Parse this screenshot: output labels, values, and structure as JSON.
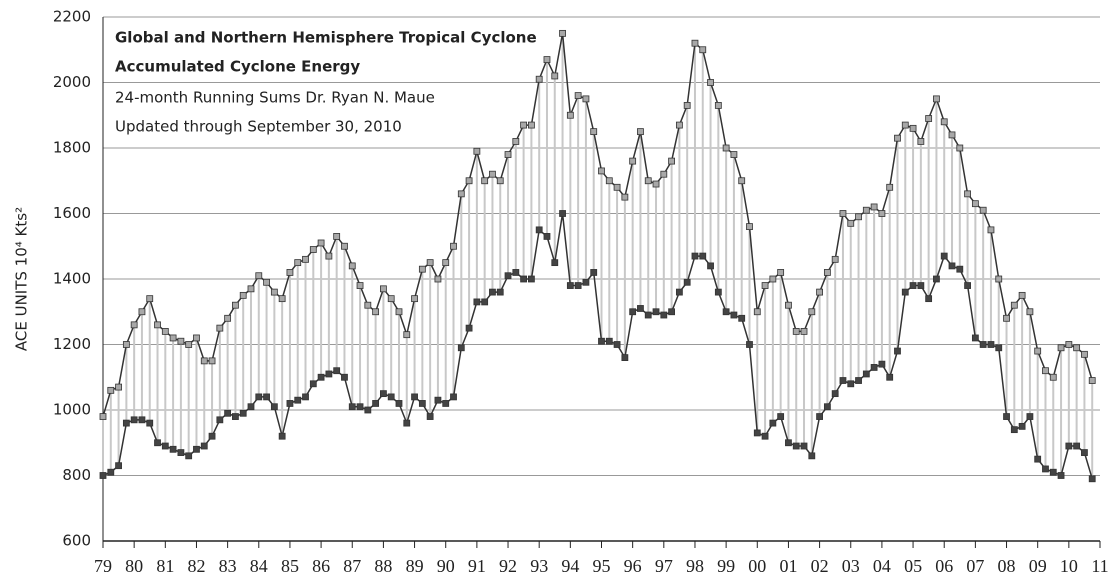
{
  "chart_data": {
    "type": "line",
    "title": [
      "Global and Northern Hemisphere Tropical Cyclone",
      "Accumulated Cyclone Energy"
    ],
    "subtitle": [
      "24-month Running Sums Dr. Ryan N. Maue",
      "Updated through September 30, 2010"
    ],
    "y_label": "ACE UNITS 10⁴ Kts²",
    "x": [
      1979,
      1979.25,
      1979.5,
      1979.75,
      1980,
      1980.25,
      1980.5,
      1980.75,
      1981,
      1981.25,
      1981.5,
      1981.75,
      1982,
      1982.25,
      1982.5,
      1982.75,
      1983,
      1983.25,
      1983.5,
      1983.75,
      1984,
      1984.25,
      1984.5,
      1984.75,
      1985,
      1985.25,
      1985.5,
      1985.75,
      1986,
      1986.25,
      1986.5,
      1986.75,
      1987,
      1987.25,
      1987.5,
      1987.75,
      1988,
      1988.25,
      1988.5,
      1988.75,
      1989,
      1989.25,
      1989.5,
      1989.75,
      1990,
      1990.25,
      1990.5,
      1990.75,
      1991,
      1991.25,
      1991.5,
      1991.75,
      1992,
      1992.25,
      1992.5,
      1992.75,
      1993,
      1993.25,
      1993.5,
      1993.75,
      1994,
      1994.25,
      1994.5,
      1994.75,
      1995,
      1995.25,
      1995.5,
      1995.75,
      1996,
      1996.25,
      1996.5,
      1996.75,
      1997,
      1997.25,
      1997.5,
      1997.75,
      1998,
      1998.25,
      1998.5,
      1998.75,
      1999,
      1999.25,
      1999.5,
      1999.75,
      2000,
      2000.25,
      2000.5,
      2000.75,
      2001,
      2001.25,
      2001.5,
      2001.75,
      2002,
      2002.25,
      2002.5,
      2002.75,
      2003,
      2003.25,
      2003.5,
      2003.75,
      2004,
      2004.25,
      2004.5,
      2004.75,
      2005,
      2005.25,
      2005.5,
      2005.75,
      2006,
      2006.25,
      2006.5,
      2006.75,
      2007,
      2007.25,
      2007.5,
      2007.75,
      2008,
      2008.25,
      2008.5,
      2008.75,
      2009,
      2009.25,
      2009.5,
      2009.75,
      2010,
      2010.25,
      2010.5,
      2010.75
    ],
    "series": [
      {
        "color": "#a8a8a8",
        "values": [
          980,
          1060,
          1070,
          1200,
          1260,
          1300,
          1340,
          1260,
          1240,
          1220,
          1210,
          1200,
          1220,
          1150,
          1150,
          1250,
          1280,
          1320,
          1350,
          1370,
          1410,
          1390,
          1360,
          1340,
          1420,
          1450,
          1460,
          1490,
          1510,
          1470,
          1530,
          1500,
          1440,
          1380,
          1320,
          1300,
          1370,
          1340,
          1300,
          1230,
          1340,
          1430,
          1450,
          1400,
          1450,
          1500,
          1660,
          1700,
          1790,
          1700,
          1720,
          1700,
          1780,
          1820,
          1870,
          1870,
          2010,
          2070,
          2020,
          2150,
          1900,
          1960,
          1950,
          1850,
          1730,
          1700,
          1680,
          1650,
          1760,
          1850,
          1700,
          1690,
          1720,
          1760,
          1870,
          1930,
          2120,
          2100,
          2000,
          1930,
          1800,
          1780,
          1700,
          1560,
          1300,
          1380,
          1400,
          1420,
          1320,
          1240,
          1240,
          1300,
          1360,
          1420,
          1460,
          1600,
          1570,
          1590,
          1610,
          1620,
          1600,
          1680,
          1830,
          1870,
          1860,
          1820,
          1890,
          1950,
          1880,
          1840,
          1800,
          1660,
          1630,
          1610,
          1550,
          1400,
          1280,
          1320,
          1350,
          1300,
          1180,
          1120,
          1100,
          1190,
          1200,
          1190,
          1170,
          1090
        ]
      },
      {
        "color": "#444444",
        "values": [
          800,
          810,
          830,
          960,
          970,
          970,
          960,
          900,
          890,
          880,
          870,
          860,
          880,
          890,
          920,
          970,
          990,
          980,
          990,
          1010,
          1040,
          1040,
          1010,
          920,
          1020,
          1030,
          1040,
          1080,
          1100,
          1110,
          1120,
          1100,
          1010,
          1010,
          1000,
          1020,
          1050,
          1040,
          1020,
          960,
          1040,
          1020,
          980,
          1030,
          1020,
          1040,
          1190,
          1250,
          1330,
          1330,
          1360,
          1360,
          1410,
          1420,
          1400,
          1400,
          1550,
          1530,
          1450,
          1600,
          1380,
          1380,
          1390,
          1420,
          1210,
          1210,
          1200,
          1160,
          1300,
          1310,
          1290,
          1300,
          1290,
          1300,
          1360,
          1390,
          1470,
          1470,
          1440,
          1360,
          1300,
          1290,
          1280,
          1200,
          930,
          920,
          960,
          980,
          900,
          890,
          890,
          860,
          980,
          1010,
          1050,
          1090,
          1080,
          1090,
          1110,
          1130,
          1140,
          1100,
          1180,
          1360,
          1380,
          1380,
          1340,
          1400,
          1470,
          1440,
          1430,
          1380,
          1220,
          1200,
          1200,
          1190,
          980,
          940,
          950,
          980,
          850,
          820,
          810,
          800,
          890,
          890,
          870,
          790
        ]
      }
    ],
    "xlim": [
      1979,
      2011
    ],
    "xticks": [
      {
        "value": 1979,
        "label": "79"
      },
      {
        "value": 1980,
        "label": "80"
      },
      {
        "value": 1981,
        "label": "81"
      },
      {
        "value": 1982,
        "label": "82"
      },
      {
        "value": 1983,
        "label": "83"
      },
      {
        "value": 1984,
        "label": "84"
      },
      {
        "value": 1985,
        "label": "85"
      },
      {
        "value": 1986,
        "label": "86"
      },
      {
        "value": 1987,
        "label": "87"
      },
      {
        "value": 1988,
        "label": "88"
      },
      {
        "value": 1989,
        "label": "89"
      },
      {
        "value": 1990,
        "label": "90"
      },
      {
        "value": 1991,
        "label": "91"
      },
      {
        "value": 1992,
        "label": "92"
      },
      {
        "value": 1993,
        "label": "93"
      },
      {
        "value": 1994,
        "label": "94"
      },
      {
        "value": 1995,
        "label": "95"
      },
      {
        "value": 1996,
        "label": "96"
      },
      {
        "value": 1997,
        "label": "97"
      },
      {
        "value": 1998,
        "label": "98"
      },
      {
        "value": 1999,
        "label": "99"
      },
      {
        "value": 2000,
        "label": "00"
      },
      {
        "value": 2001,
        "label": "01"
      },
      {
        "value": 2002,
        "label": "02"
      },
      {
        "value": 2003,
        "label": "03"
      },
      {
        "value": 2004,
        "label": "04"
      },
      {
        "value": 2005,
        "label": "05"
      },
      {
        "value": 2006,
        "label": "06"
      },
      {
        "value": 2007,
        "label": "07"
      },
      {
        "value": 2008,
        "label": "08"
      },
      {
        "value": 2009,
        "label": "09"
      },
      {
        "value": 2010,
        "label": "10"
      },
      {
        "value": 2011,
        "label": "11"
      }
    ],
    "ylim": [
      600,
      2200
    ],
    "yticks": [
      600,
      800,
      1000,
      1200,
      1400,
      1600,
      1800,
      2000,
      2200
    ],
    "grid": true
  }
}
